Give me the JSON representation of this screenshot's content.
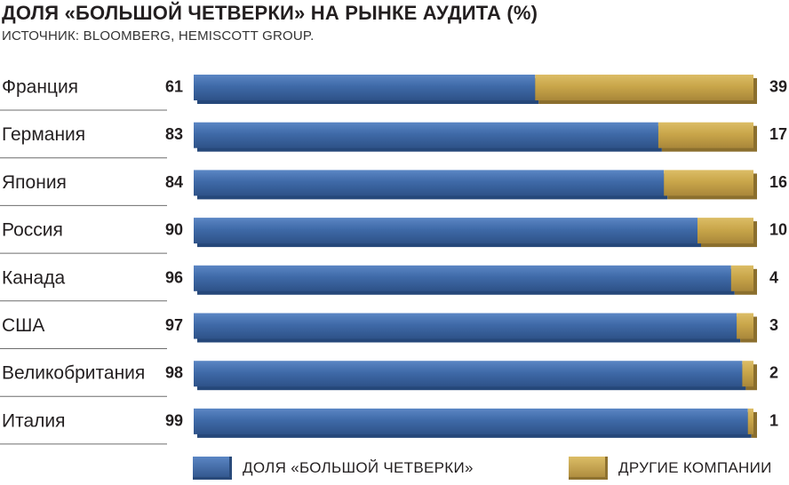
{
  "header": {
    "title": "ДОЛЯ «БОЛЬШОЙ ЧЕТВЕРКИ» НА РЫНКЕ АУДИТА (%)",
    "source": "ИСТОЧНИК: BLOOMBERG, HEMISCOTT GROUP."
  },
  "colors": {
    "big_four": "#3c67a5",
    "others": "#c9a64a"
  },
  "legend": {
    "big_four": "ДОЛЯ «БОЛЬШОЙ ЧЕТВЕРКИ»",
    "others": "ДРУГИЕ КОМПАНИИ"
  },
  "chart_data": {
    "type": "bar",
    "orientation": "horizontal",
    "stacked": true,
    "title": "ДОЛЯ «БОЛЬШОЙ ЧЕТВЕРКИ» НА РЫНКЕ АУДИТА (%)",
    "categories": [
      "Франция",
      "Германия",
      "Япония",
      "Россия",
      "Канада",
      "США",
      "Великобритания",
      "Италия"
    ],
    "series": [
      {
        "name": "ДОЛЯ «БОЛЬШОЙ ЧЕТВЕРКИ»",
        "values": [
          61,
          83,
          84,
          90,
          96,
          97,
          98,
          99
        ]
      },
      {
        "name": "ДРУГИЕ КОМПАНИИ",
        "values": [
          39,
          17,
          16,
          10,
          4,
          3,
          2,
          1
        ]
      }
    ],
    "xlim": [
      0,
      100
    ],
    "grid": false,
    "legend_position": "bottom"
  }
}
